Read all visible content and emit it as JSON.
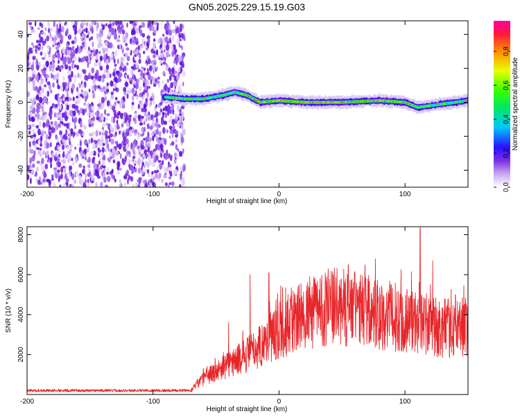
{
  "page": {
    "title": "GN05.2025.229.15.19.G03"
  },
  "colors": {
    "snr_line": "#e8262a",
    "spectrogram_scatter": "#7b2fe0",
    "axis": "#000000"
  },
  "chart_data": [
    {
      "type": "heatmap",
      "title": "GN05.2025.229.15.19.G03",
      "xlabel": "Height of straight line (km)",
      "ylabel": "Frequency (Hz)",
      "xlim": [
        -200,
        150
      ],
      "ylim": [
        -50,
        48
      ],
      "xticks": [
        -200,
        -100,
        0,
        100
      ],
      "xtick_labels": [
        "-200",
        "-100",
        "0",
        "100"
      ],
      "yticks": [
        -40,
        -20,
        0,
        20,
        40
      ],
      "ytick_labels": [
        "-40",
        "-20",
        "0",
        "20",
        "40"
      ],
      "noise_region_x": [
        -200,
        -75
      ],
      "frequency_track": [
        {
          "x": -90,
          "y": 3
        },
        {
          "x": -75,
          "y": 2
        },
        {
          "x": -60,
          "y": 2
        },
        {
          "x": -45,
          "y": 4
        },
        {
          "x": -35,
          "y": 6
        },
        {
          "x": -25,
          "y": 4
        },
        {
          "x": -15,
          "y": 0
        },
        {
          "x": 0,
          "y": 1
        },
        {
          "x": 20,
          "y": 0
        },
        {
          "x": 50,
          "y": 0
        },
        {
          "x": 80,
          "y": 1
        },
        {
          "x": 100,
          "y": 0
        },
        {
          "x": 110,
          "y": -3
        },
        {
          "x": 130,
          "y": -1
        },
        {
          "x": 150,
          "y": 1
        }
      ],
      "colorbar": {
        "label": "Normalized spectral amplitude",
        "range": [
          0,
          0.98
        ],
        "ticks": [
          0.0,
          0.2,
          0.4,
          0.6,
          0.8
        ],
        "tick_labels": [
          "0.0",
          "0.2",
          "0.4",
          "0.6",
          "0.8"
        ]
      },
      "grid": false
    },
    {
      "type": "line",
      "xlabel": "Height of straight line (km)",
      "ylabel": "SNR (10 * v/v)",
      "xlim": [
        -200,
        150
      ],
      "ylim": [
        0,
        8400
      ],
      "xticks": [
        -200,
        -100,
        0,
        100
      ],
      "xtick_labels": [
        "-200",
        "-100",
        "0",
        "100"
      ],
      "yticks": [
        2000,
        4000,
        6000,
        8000
      ],
      "ytick_labels": [
        "2000",
        "4000",
        "6000",
        "8000"
      ],
      "series": [
        {
          "envelope": [
            {
              "x": -200,
              "y": 200
            },
            {
              "x": -70,
              "y": 200
            },
            {
              "x": -60,
              "y": 800
            },
            {
              "x": -40,
              "y": 1500
            },
            {
              "x": -20,
              "y": 2200
            },
            {
              "x": 0,
              "y": 3200
            },
            {
              "x": 20,
              "y": 4000
            },
            {
              "x": 40,
              "y": 4400
            },
            {
              "x": 60,
              "y": 4300
            },
            {
              "x": 80,
              "y": 4000
            },
            {
              "x": 100,
              "y": 3800
            },
            {
              "x": 120,
              "y": 3400
            },
            {
              "x": 150,
              "y": 3200
            }
          ],
          "peaks": [
            {
              "x": -40,
              "y": 3600
            },
            {
              "x": -23,
              "y": 6000
            },
            {
              "x": -8,
              "y": 6100
            },
            {
              "x": 55,
              "y": 6500
            },
            {
              "x": 112,
              "y": 8350
            },
            {
              "x": 122,
              "y": 6700
            },
            {
              "x": 140,
              "y": 5000
            }
          ]
        }
      ],
      "grid": false
    }
  ]
}
